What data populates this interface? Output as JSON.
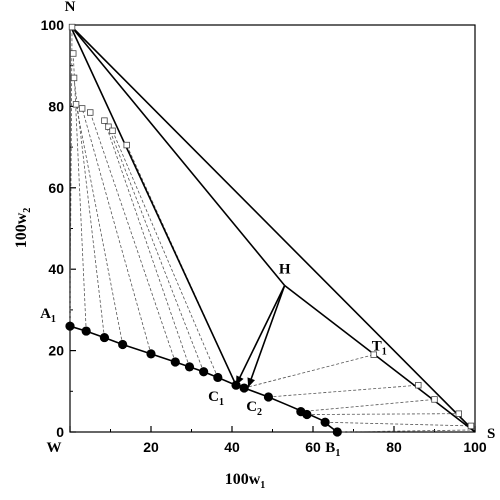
{
  "chart_data": {
    "type": "scatter",
    "xlabel": {
      "main": "100w",
      "sub": "1"
    },
    "ylabel": {
      "main": "100w",
      "sub": "2"
    },
    "xlim": [
      0,
      100
    ],
    "ylim": [
      0,
      100
    ],
    "xticks": [
      0,
      20,
      40,
      60,
      80,
      100
    ],
    "yticks": [
      0,
      20,
      40,
      60,
      80,
      100
    ],
    "grid": false,
    "points": [
      {
        "name": "N",
        "sub": "",
        "x": 0,
        "y": 100
      },
      {
        "name": "W",
        "sub": "",
        "x": 0,
        "y": 0
      },
      {
        "name": "S",
        "sub": "",
        "x": 100,
        "y": 0
      },
      {
        "name": "H",
        "sub": "",
        "x": 53,
        "y": 36
      },
      {
        "name": "A",
        "sub": "1",
        "x": 0,
        "y": 26
      },
      {
        "name": "B",
        "sub": "1",
        "x": 66,
        "y": 0
      },
      {
        "name": "C",
        "sub": "1",
        "x": 41,
        "y": 11.5
      },
      {
        "name": "C",
        "sub": "2",
        "x": 44,
        "y": 11
      },
      {
        "name": "T",
        "sub": "1",
        "x": 75,
        "y": 19
      }
    ],
    "solubility_curve": [
      [
        0,
        26
      ],
      [
        4,
        24.8
      ],
      [
        8.5,
        23.2
      ],
      [
        13,
        21.5
      ],
      [
        20,
        19.2
      ],
      [
        26,
        17.2
      ],
      [
        29.5,
        16
      ],
      [
        33,
        14.8
      ],
      [
        36.5,
        13.4
      ],
      [
        41,
        11.5
      ],
      [
        43,
        10.8
      ],
      [
        49,
        8.6
      ],
      [
        53.5,
        6.7
      ],
      [
        58,
        4.8
      ],
      [
        62,
        3
      ],
      [
        66,
        0
      ]
    ],
    "liquid_phase_points": [
      [
        0,
        26
      ],
      [
        4,
        24.8
      ],
      [
        8.5,
        23.2
      ],
      [
        13,
        21.5
      ],
      [
        20,
        19.2
      ],
      [
        26,
        17.2
      ],
      [
        29.5,
        16
      ],
      [
        33,
        14.8
      ],
      [
        36.5,
        13.4
      ],
      [
        41,
        11.5
      ],
      [
        43,
        10.8
      ],
      [
        49,
        8.6
      ],
      [
        57,
        5
      ],
      [
        58.5,
        4.3
      ],
      [
        63,
        2.4
      ],
      [
        66,
        0
      ]
    ],
    "solid_phase_points": [
      [
        0.5,
        99.5
      ],
      [
        0.8,
        93
      ],
      [
        1,
        87
      ],
      [
        1.5,
        80.5
      ],
      [
        3,
        79.5
      ],
      [
        5,
        78.5
      ],
      [
        8.5,
        76.5
      ],
      [
        9.5,
        75
      ],
      [
        10.5,
        74
      ],
      [
        14,
        70.5
      ],
      [
        75,
        19
      ],
      [
        86,
        11.5
      ],
      [
        90,
        8
      ],
      [
        96,
        4.5
      ],
      [
        99,
        1.5
      ]
    ],
    "tie_lines": [
      [
        [
          0,
          26
        ],
        [
          0.5,
          99.5
        ]
      ],
      [
        [
          4,
          24.8
        ],
        [
          0.8,
          93
        ]
      ],
      [
        [
          8.5,
          23.2
        ],
        [
          1,
          87
        ]
      ],
      [
        [
          13,
          21.5
        ],
        [
          1.5,
          80.5
        ]
      ],
      [
        [
          20,
          19.2
        ],
        [
          3,
          79.5
        ]
      ],
      [
        [
          26,
          17.2
        ],
        [
          5,
          78.5
        ]
      ],
      [
        [
          29.5,
          16
        ],
        [
          8.5,
          76.5
        ]
      ],
      [
        [
          33,
          14.8
        ],
        [
          9.5,
          75
        ]
      ],
      [
        [
          36.5,
          13.4
        ],
        [
          10.5,
          74
        ]
      ],
      [
        [
          41,
          11.5
        ],
        [
          14,
          70.5
        ]
      ],
      [
        [
          43,
          10.8
        ],
        [
          75,
          19
        ]
      ],
      [
        [
          49,
          8.6
        ],
        [
          86,
          11.5
        ]
      ],
      [
        [
          57,
          5
        ],
        [
          90,
          8
        ]
      ],
      [
        [
          58.5,
          4.3
        ],
        [
          96,
          4.5
        ]
      ],
      [
        [
          63,
          2.4
        ],
        [
          99,
          1.5
        ]
      ],
      [
        [
          66,
          0
        ],
        [
          99.5,
          0.5
        ]
      ]
    ],
    "phase_boundaries": [
      [
        [
          0,
          100
        ],
        [
          41,
          11.5
        ]
      ],
      [
        [
          0,
          100
        ],
        [
          53,
          36
        ]
      ],
      [
        [
          0,
          100
        ],
        [
          100,
          0
        ]
      ],
      [
        [
          53,
          36
        ],
        [
          100,
          0
        ]
      ],
      [
        [
          53,
          36
        ],
        [
          41,
          11.5
        ]
      ],
      [
        [
          53,
          36
        ],
        [
          44,
          11
        ]
      ]
    ]
  }
}
